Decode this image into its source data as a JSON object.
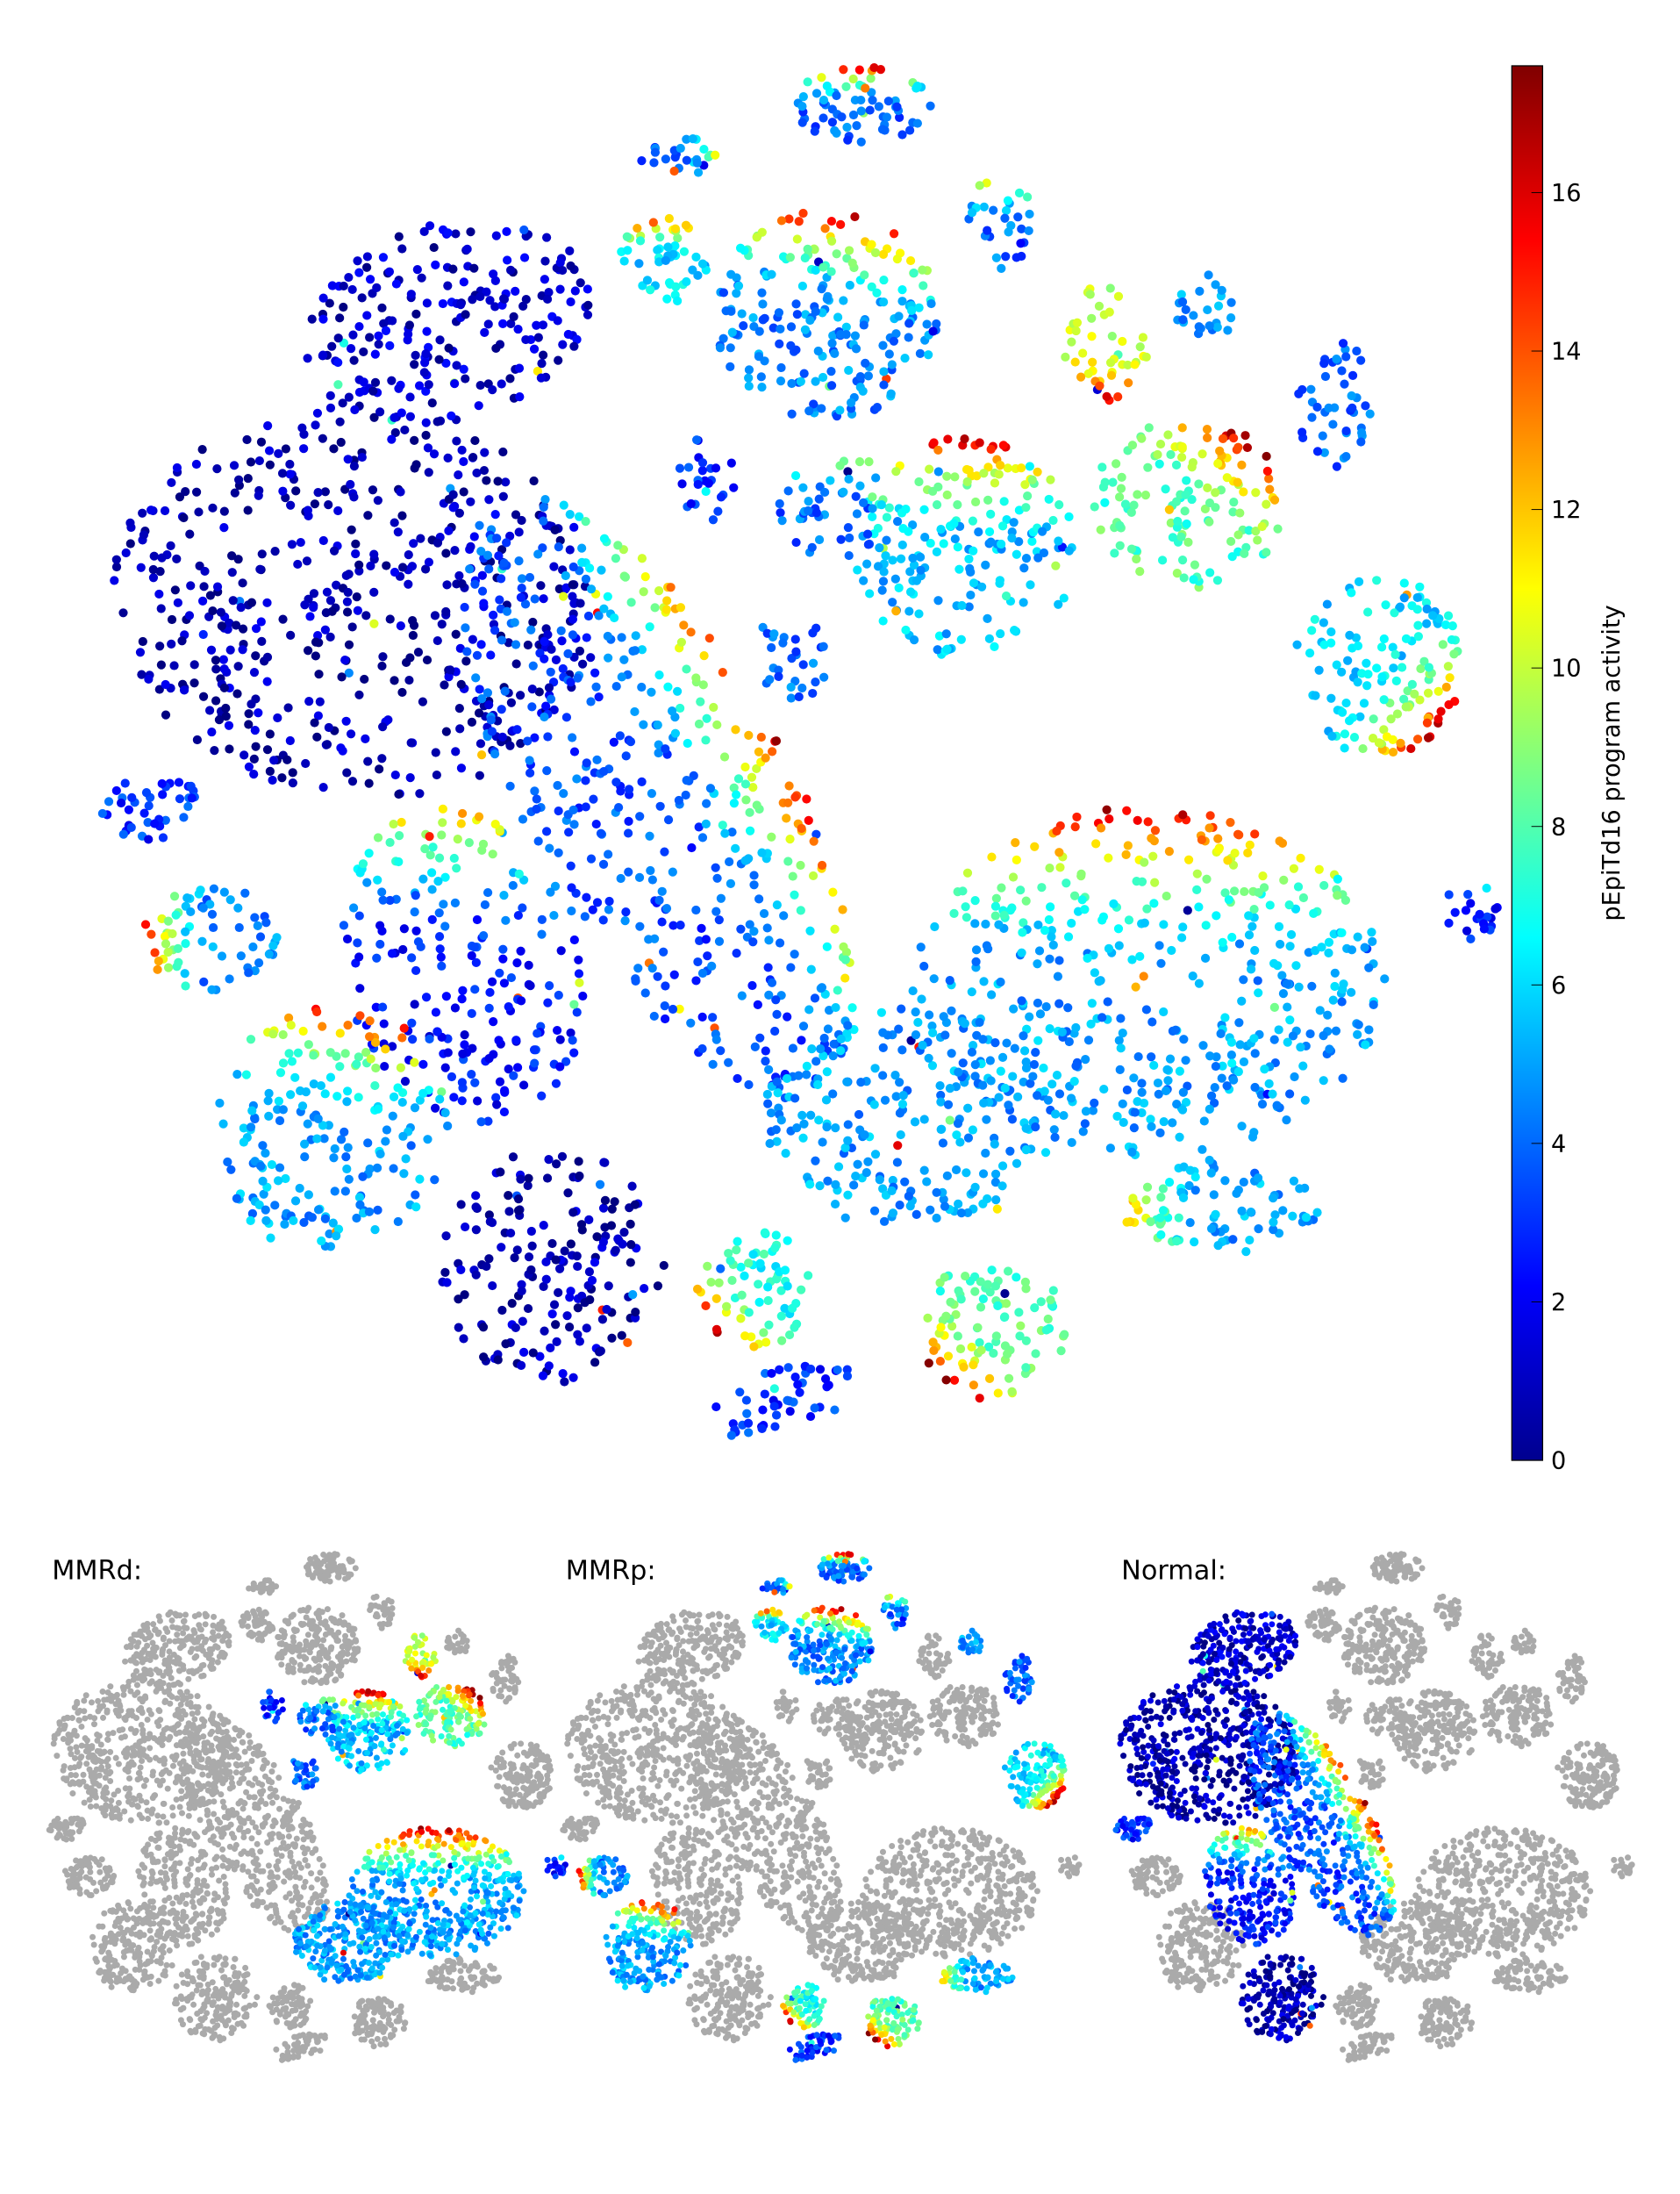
{
  "chart_data": [
    {
      "type": "scatter",
      "panel": "main",
      "title": "",
      "xlabel": "",
      "ylabel": "",
      "grid": false,
      "axes_visible": false,
      "colormap": "jet",
      "color_by": "pEpiTd16 program activity",
      "colorbar": {
        "label": "pEpiTd16 program activity",
        "min": 0,
        "max": 17.6,
        "ticks": [
          "0",
          "2",
          "4",
          "6",
          "8",
          "10",
          "12",
          "14",
          "16"
        ],
        "placement": "right"
      }
    },
    {
      "type": "scatter",
      "panel": "MMRd",
      "title": "MMRd:",
      "background_color": "#aaaaaa",
      "colormap": "jet"
    },
    {
      "type": "scatter",
      "panel": "MMRp",
      "title": "MMRp:",
      "background_color": "#aaaaaa",
      "colormap": "jet"
    },
    {
      "type": "scatter",
      "panel": "Normal",
      "title": "Normal:",
      "background_color": "#aaaaaa",
      "colormap": "jet"
    }
  ]
}
